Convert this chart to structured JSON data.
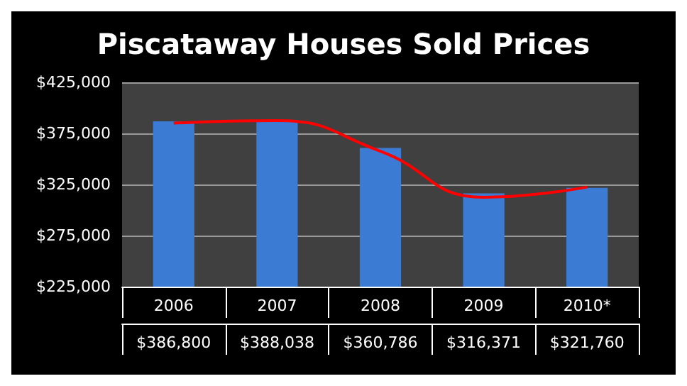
{
  "chart_data": {
    "type": "bar",
    "title": "Piscataway Houses Sold Prices",
    "categories": [
      "2006",
      "2007",
      "2008",
      "2009",
      "2010*"
    ],
    "series": [
      {
        "color": "#3b7bd4",
        "values": [
          386800,
          388038,
          360786,
          316371,
          321760
        ],
        "value_labels": [
          "$386,800",
          "$388,038",
          "$360,786",
          "$316,371",
          "$321,760"
        ]
      },
      {
        "type": "line",
        "color": "#ff0000",
        "values": [
          385000,
          387500,
          357500,
          312500,
          322500
        ],
        "marker": "none"
      }
    ],
    "ylim": [
      225000,
      425000
    ],
    "yticks": [
      {
        "value": 225000,
        "label": "$225,000"
      },
      {
        "value": 275000,
        "label": "$275,000"
      },
      {
        "value": 325000,
        "label": "$325,000"
      },
      {
        "value": 375000,
        "label": "$375,000"
      },
      {
        "value": 425000,
        "label": "$425,000"
      }
    ],
    "grid": "y"
  }
}
